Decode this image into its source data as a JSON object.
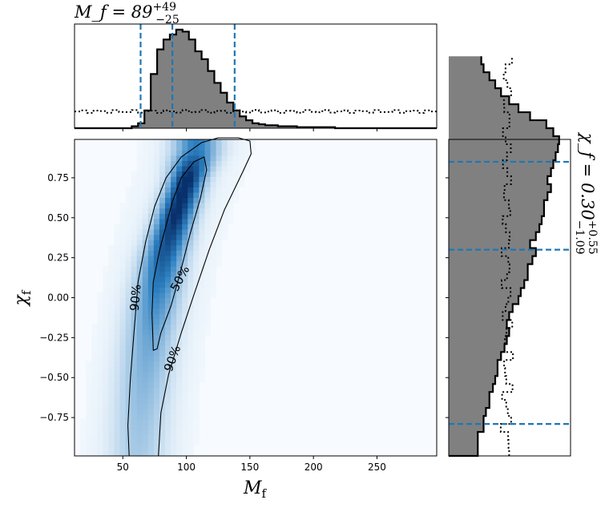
{
  "chart_data": {
    "type": "heatmap",
    "main": {
      "xlabel": "M_f",
      "ylabel": "χ_f",
      "xlim": [
        12,
        297
      ],
      "ylim": [
        -0.99,
        0.99
      ],
      "xticks": [
        50,
        100,
        150,
        200,
        250
      ],
      "yticks": [
        -0.75,
        -0.5,
        -0.25,
        0.0,
        0.25,
        0.5,
        0.75
      ],
      "xtick_labels": [
        "50",
        "100",
        "150",
        "200",
        "250"
      ],
      "ytick_labels": [
        "−0.75",
        "−0.50",
        "−0.25",
        "0.00",
        "0.25",
        "0.50",
        "0.75"
      ],
      "density_ridge": {
        "y": [
          -0.97,
          -0.75,
          -0.5,
          -0.25,
          0.0,
          0.25,
          0.5,
          0.75,
          0.92
        ],
        "center_x": [
          62,
          64,
          67,
          71,
          76,
          82,
          91,
          101,
          108
        ],
        "weight": [
          0.18,
          0.22,
          0.28,
          0.36,
          0.5,
          0.72,
          0.95,
          1.0,
          0.55
        ]
      },
      "contours": [
        {
          "label": "50%",
          "points": [
            [
              74,
              -0.33
            ],
            [
              73,
              -0.1
            ],
            [
              74,
              0.1
            ],
            [
              79,
              0.3
            ],
            [
              84,
              0.45
            ],
            [
              89,
              0.6
            ],
            [
              96,
              0.75
            ],
            [
              106,
              0.85
            ],
            [
              114,
              0.88
            ],
            [
              116,
              0.8
            ],
            [
              111,
              0.62
            ],
            [
              103,
              0.4
            ],
            [
              95,
              0.15
            ],
            [
              88,
              -0.05
            ],
            [
              80,
              -0.22
            ],
            [
              77,
              -0.32
            ]
          ],
          "label_at": [
            95,
            0.12
          ],
          "label_rotation": -62
        },
        {
          "label": "90%",
          "points": [
            [
              55,
              -0.99
            ],
            [
              54,
              -0.8
            ],
            [
              56,
              -0.5
            ],
            [
              59,
              -0.2
            ],
            [
              62,
              0.1
            ],
            [
              68,
              0.35
            ],
            [
              75,
              0.57
            ],
            [
              84,
              0.75
            ],
            [
              96,
              0.88
            ],
            [
              112,
              0.97
            ],
            [
              125,
              1.0
            ],
            [
              141,
              1.0
            ],
            [
              150,
              0.98
            ],
            [
              151,
              0.9
            ],
            [
              144,
              0.78
            ],
            [
              130,
              0.55
            ],
            [
              118,
              0.3
            ],
            [
              106,
              0.02
            ],
            [
              96,
              -0.22
            ],
            [
              86,
              -0.48
            ],
            [
              80,
              -0.72
            ],
            [
              78,
              -0.99
            ]
          ],
          "labels": [
            {
              "label": "90%",
              "at": [
                60,
                0.0
              ],
              "rotation": -85
            },
            {
              "label": "90%",
              "at": [
                89,
                -0.38
              ],
              "rotation": -70
            }
          ]
        }
      ]
    },
    "top": {
      "title": "M_f = 89",
      "title_sup": "+49",
      "title_sub": "−25",
      "bins_start": 12,
      "bin_width": 5,
      "counts": [
        0,
        0,
        0,
        0,
        0,
        0,
        0,
        0,
        0,
        0.02,
        0.05,
        0.18,
        0.55,
        0.8,
        0.9,
        0.95,
        1.0,
        0.98,
        0.9,
        0.78,
        0.7,
        0.58,
        0.46,
        0.36,
        0.26,
        0.18,
        0.12,
        0.08,
        0.05,
        0.04,
        0.03,
        0.03,
        0.02,
        0.02,
        0.02,
        0.01,
        0.01,
        0.01,
        0.01,
        0.01,
        0.01,
        0,
        0,
        0,
        0,
        0,
        0,
        0,
        0,
        0,
        0,
        0,
        0,
        0,
        0,
        0,
        0
      ],
      "prior_level": 0.17,
      "vlines": [
        64,
        89,
        138
      ]
    },
    "right": {
      "title": "χ_f = 0.30",
      "title_sup": "+0.55",
      "title_sub": "−1.09",
      "bins_start": -0.99,
      "bin_width": 0.05,
      "counts": [
        0.25,
        0.25,
        0.25,
        0.3,
        0.3,
        0.32,
        0.35,
        0.35,
        0.38,
        0.4,
        0.42,
        0.42,
        0.45,
        0.48,
        0.5,
        0.52,
        0.5,
        0.52,
        0.55,
        0.6,
        0.62,
        0.65,
        0.68,
        0.68,
        0.72,
        0.75,
        0.7,
        0.75,
        0.78,
        0.8,
        0.82,
        0.82,
        0.85,
        0.88,
        0.85,
        0.88,
        0.9,
        0.92,
        0.94,
        0.95,
        0.9,
        0.84,
        0.7,
        0.6,
        0.52,
        0.45,
        0.4,
        0.35,
        0.3,
        0.28
      ],
      "prior_level": 0.5,
      "vlines": [
        -0.79,
        0.3,
        0.85
      ]
    },
    "colors": {
      "hist_fill": "#808080",
      "median_line": "#1f77b4",
      "density_low": "#f7fbff",
      "density_high": "#08306b"
    }
  }
}
